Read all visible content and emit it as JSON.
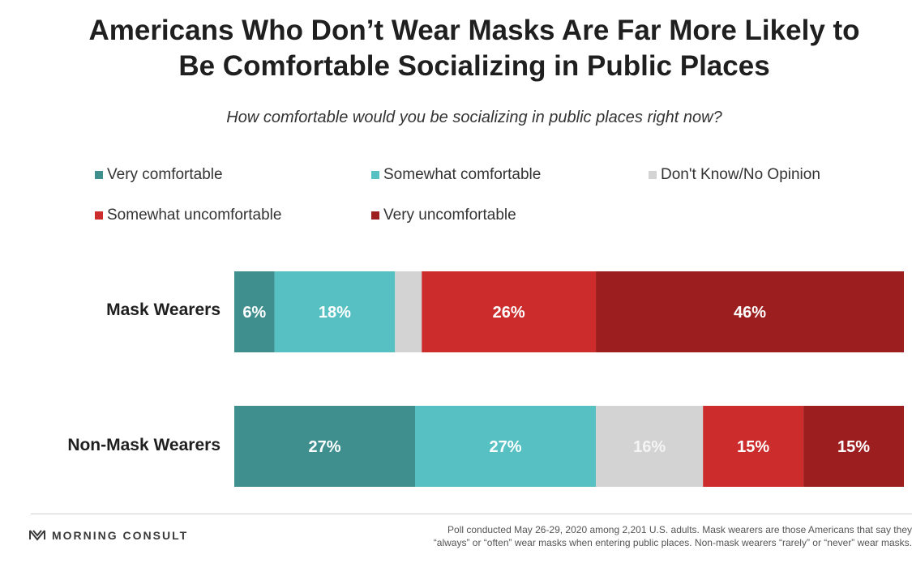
{
  "chart_data": {
    "type": "bar",
    "orientation": "horizontal",
    "stacked": true,
    "title": "Americans Who Don’t Wear Masks Are Far More Likely to Be Comfortable Socializing in Public Places",
    "title_lines": [
      "Americans Who Don’t Wear Masks Are Far More Likely to",
      "Be Comfortable Socializing in Public Places"
    ],
    "subtitle": "How comfortable would you be socializing in public places right now?",
    "categories": [
      "Mask Wearers",
      "Non-Mask Wearers"
    ],
    "legend_placement": "top",
    "series": [
      {
        "name": "Very comfortable",
        "color": "#3f8f8f",
        "values": [
          6,
          27
        ],
        "labels": [
          "6%",
          "27%"
        ]
      },
      {
        "name": "Somewhat comfortable",
        "color": "#56c0c3",
        "values": [
          18,
          27
        ],
        "labels": [
          "18%",
          "27%"
        ]
      },
      {
        "name": "Don't Know/No Opinion",
        "color": "#d3d3d3",
        "values": [
          4,
          16
        ],
        "labels": [
          "",
          "16%"
        ]
      },
      {
        "name": "Somewhat uncomfortable",
        "color": "#cc2c2c",
        "values": [
          26,
          15
        ],
        "labels": [
          "26%",
          "15%"
        ]
      },
      {
        "name": "Very uncomfortable",
        "color": "#9c1e1f",
        "values": [
          46,
          15
        ],
        "labels": [
          "46%",
          "15%"
        ]
      }
    ]
  },
  "footer": {
    "brand": "MORNING CONSULT",
    "note_lines": [
      "Poll conducted May 26-29, 2020 among 2,201 U.S. adults. Mask wearers are those Americans that say they",
      "“always” or “often” wear masks when entering public places. Non-mask wearers “rarely” or “never” wear masks."
    ]
  }
}
